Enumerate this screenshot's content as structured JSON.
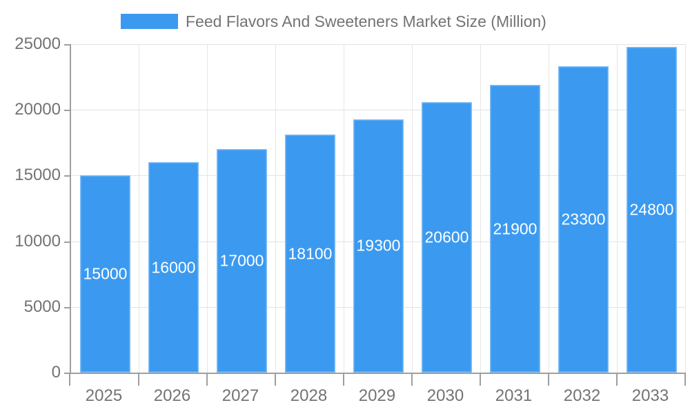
{
  "chart_data": {
    "type": "bar",
    "title": "Feed Flavors And Sweeteners Market Size (Million)",
    "categories": [
      "2025",
      "2026",
      "2027",
      "2028",
      "2029",
      "2030",
      "2031",
      "2032",
      "2033"
    ],
    "values": [
      15000,
      16000,
      17000,
      18100,
      19300,
      20600,
      21900,
      23300,
      24800
    ],
    "xlabel": "",
    "ylabel": "",
    "ylim": [
      0,
      25000
    ],
    "yticks": [
      0,
      5000,
      10000,
      15000,
      20000,
      25000
    ],
    "grid": true,
    "legend_position": "top",
    "bar_labels_position": "inside-center",
    "colors": {
      "bar": "#3b9af0",
      "bar_label_text": "#ffffff",
      "axis_line": "#9e9e9e",
      "axis_text": "#737373",
      "gridline": "#e2e2e2",
      "background": "#ffffff"
    }
  }
}
